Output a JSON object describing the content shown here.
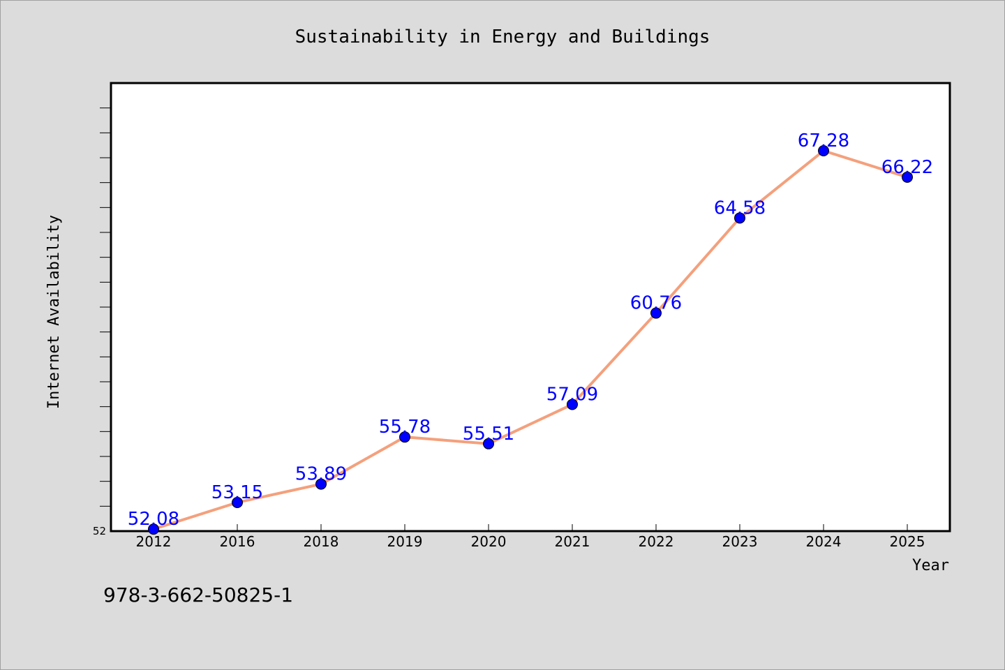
{
  "figure": {
    "background": "#dcdcdc",
    "footer_text": "978-3-662-50825-1"
  },
  "chart_data": {
    "type": "line",
    "title": "Sustainability in Energy and Buildings",
    "xlabel": "Year",
    "ylabel": "Internet Availability",
    "categories": [
      "2012",
      "2016",
      "2018",
      "2019",
      "2020",
      "2021",
      "2022",
      "2023",
      "2024",
      "2025"
    ],
    "series": [
      {
        "values": [
          52.08,
          53.15,
          53.89,
          55.78,
          55.51,
          57.09,
          60.76,
          64.58,
          67.28,
          66.22
        ],
        "data_labels": [
          "52.08",
          "53.15",
          "53.89",
          "55.78",
          "55.51",
          "57.09",
          "60.76",
          "64.58",
          "67.28",
          "66.22"
        ],
        "line_color": "#f4a07c",
        "marker_color": "#0000ff",
        "label_color": "#0000ff"
      }
    ],
    "y_tick_labels": [
      "52"
    ],
    "ylim": [
      52,
      70
    ],
    "y_minor_tick_step": 1,
    "grid": false,
    "legend": "none"
  }
}
